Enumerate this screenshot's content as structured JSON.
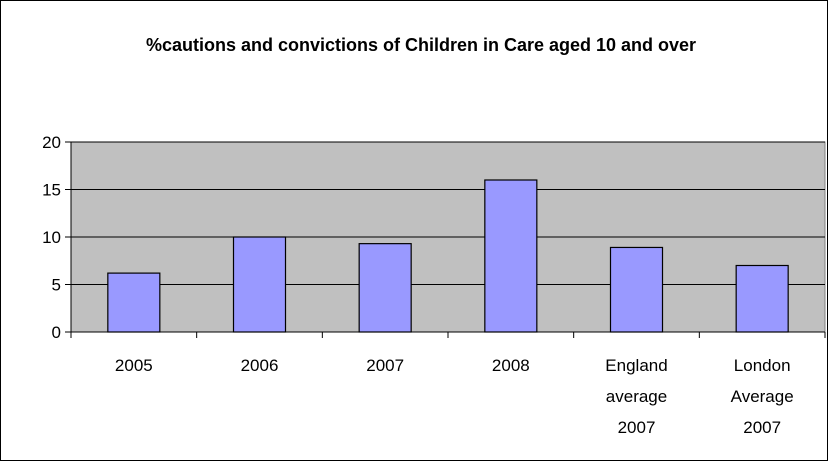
{
  "chart_data": {
    "type": "bar",
    "title": "%cautions and convictions of Children in Care aged 10 and over",
    "categories": [
      [
        "2005"
      ],
      [
        "2006"
      ],
      [
        "2007"
      ],
      [
        "2008"
      ],
      [
        "England",
        "average",
        "2007"
      ],
      [
        "London",
        "Average",
        "2007"
      ]
    ],
    "values": [
      6.2,
      10.0,
      9.3,
      16.0,
      8.9,
      7.0
    ],
    "ylim": [
      0,
      20
    ],
    "yticks": [
      "0",
      "5",
      "10",
      "15",
      "20"
    ],
    "grid": true,
    "legend": "none",
    "colors": {
      "bar": "#9999ff",
      "plot_background": "#c0c0c0",
      "gridline": "#000000"
    }
  }
}
